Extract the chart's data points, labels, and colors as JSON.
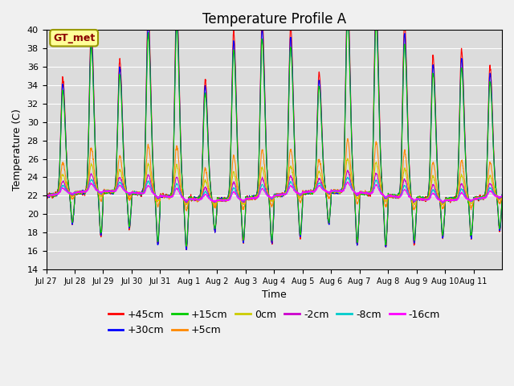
{
  "title": "Temperature Profile A",
  "xlabel": "Time",
  "ylabel": "Temperature (C)",
  "ylim": [
    14,
    40
  ],
  "yticks": [
    14,
    16,
    18,
    20,
    22,
    24,
    26,
    28,
    30,
    32,
    34,
    36,
    38,
    40
  ],
  "bg_color": "#dcdcdc",
  "fig_bg_color": "#f0f0f0",
  "annotation_text": "GT_met",
  "annotation_bg": "#ffff99",
  "annotation_border": "#999900",
  "series_colors": {
    "+45cm": "#ff0000",
    "+30cm": "#0000ff",
    "+15cm": "#00cc00",
    "+5cm": "#ff8800",
    "0cm": "#cccc00",
    "-2cm": "#cc00cc",
    "-8cm": "#00cccc",
    "-16cm": "#ff00ff"
  },
  "legend_order": [
    "+45cm",
    "+30cm",
    "+15cm",
    "+5cm",
    "0cm",
    "-2cm",
    "-8cm",
    "-16cm"
  ],
  "n_days": 16,
  "points_per_day": 144,
  "base_temp": 22.0,
  "x_tick_labels": [
    "Jul 27",
    "Jul 28",
    "Jul 29",
    "Jul 30",
    "Jul 31",
    "Aug 1",
    "Aug 2",
    "Aug 3",
    "Aug 4",
    "Aug 5",
    "Aug 6",
    "Aug 7",
    "Aug 8",
    "Aug 9",
    "Aug 10",
    "Aug 11"
  ],
  "title_fontsize": 12,
  "axis_fontsize": 9,
  "tick_fontsize": 8,
  "legend_fontsize": 9
}
